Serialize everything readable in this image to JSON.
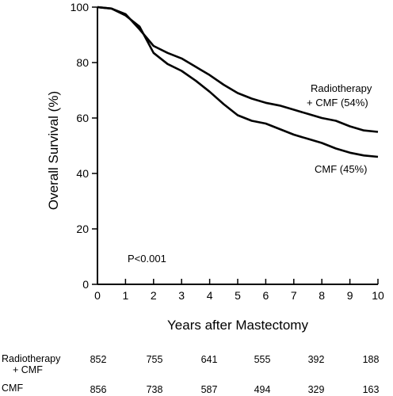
{
  "chart_data": {
    "type": "line",
    "xlabel": "Years after Mastectomy",
    "ylabel": "Overall Survival (%)",
    "xlim": [
      0,
      10
    ],
    "ylim": [
      0,
      100
    ],
    "x_ticks": [
      "0",
      "1",
      "2",
      "3",
      "4",
      "5",
      "6",
      "7",
      "8",
      "9",
      "10"
    ],
    "y_ticks": [
      "0",
      "20",
      "40",
      "60",
      "80",
      "100"
    ],
    "p_value": "P<0.001",
    "series": [
      {
        "name": "Radiotherapy + CMF (54%)",
        "label_line1": "Radiotherapy",
        "label_line2": "+ CMF (54%)",
        "x": [
          0,
          0.5,
          1.0,
          1.5,
          2.0,
          2.5,
          3.0,
          3.5,
          4.0,
          4.5,
          5.0,
          5.5,
          6.0,
          6.5,
          7.0,
          7.5,
          8.0,
          8.5,
          9.0,
          9.5,
          10.0
        ],
        "y": [
          100,
          99.5,
          97.5,
          92,
          86,
          83.5,
          81.5,
          78.5,
          75.5,
          72,
          69,
          67,
          65.5,
          64.5,
          63,
          61.5,
          60,
          59,
          57,
          55.5,
          55
        ]
      },
      {
        "name": "CMF (45%)",
        "label_line1": "CMF (45%)",
        "x": [
          0,
          0.5,
          1.0,
          1.5,
          2.0,
          2.5,
          3.0,
          3.5,
          4.0,
          4.5,
          5.0,
          5.5,
          6.0,
          6.5,
          7.0,
          7.5,
          8.0,
          8.5,
          9.0,
          9.5,
          10.0
        ],
        "y": [
          100,
          99.5,
          97,
          93,
          83.5,
          79.5,
          77,
          73.5,
          69.5,
          65,
          61,
          59,
          58,
          56,
          54,
          52.5,
          51,
          49,
          47.5,
          46.5,
          46
        ]
      }
    ]
  },
  "risk_table": {
    "rows": [
      {
        "label_line1": "Radiotherapy",
        "label_line2": "+ CMF",
        "values": [
          "852",
          "755",
          "641",
          "555",
          "392",
          "188"
        ]
      },
      {
        "label_line1": "CMF",
        "label_line2": "",
        "values": [
          "856",
          "738",
          "587",
          "494",
          "329",
          "163"
        ]
      }
    ]
  }
}
